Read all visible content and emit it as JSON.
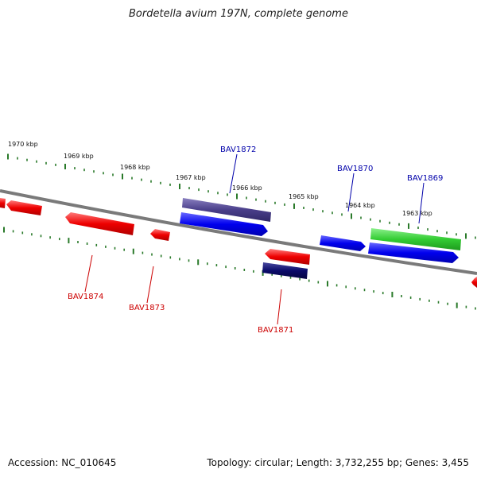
{
  "title": "Bordetella avium 197N, complete genome",
  "footer": {
    "accession": "Accession: NC_010645",
    "summary": "Topology: circular; Length: 3,732,255 bp; Genes: 3,455"
  },
  "colors": {
    "forward_strand": "#0000ee",
    "reverse_strand": "#ee0000",
    "rna": "#33cc33",
    "highlight_forward": "#4a3f8a",
    "highlight_reverse": "#0b0b6a",
    "backbone": "#8a8a8a",
    "ticks": "#2a7a2a",
    "label_forward": "#0000aa",
    "label_reverse": "#cc0000"
  },
  "kbp_labels": [
    "1970 kbp",
    "1969 kbp",
    "1968 kbp",
    "1967 kbp",
    "1966 kbp",
    "1965 kbp",
    "1964 kbp",
    "1963 kbp"
  ],
  "genes": [
    {
      "label": "BAV1872",
      "strand": "forward"
    },
    {
      "label": "BAV1870",
      "strand": "forward"
    },
    {
      "label": "BAV1869",
      "strand": "forward"
    },
    {
      "label": "BAV1874",
      "strand": "reverse"
    },
    {
      "label": "BAV1873",
      "strand": "reverse"
    },
    {
      "label": "BAV1871",
      "strand": "reverse"
    }
  ]
}
